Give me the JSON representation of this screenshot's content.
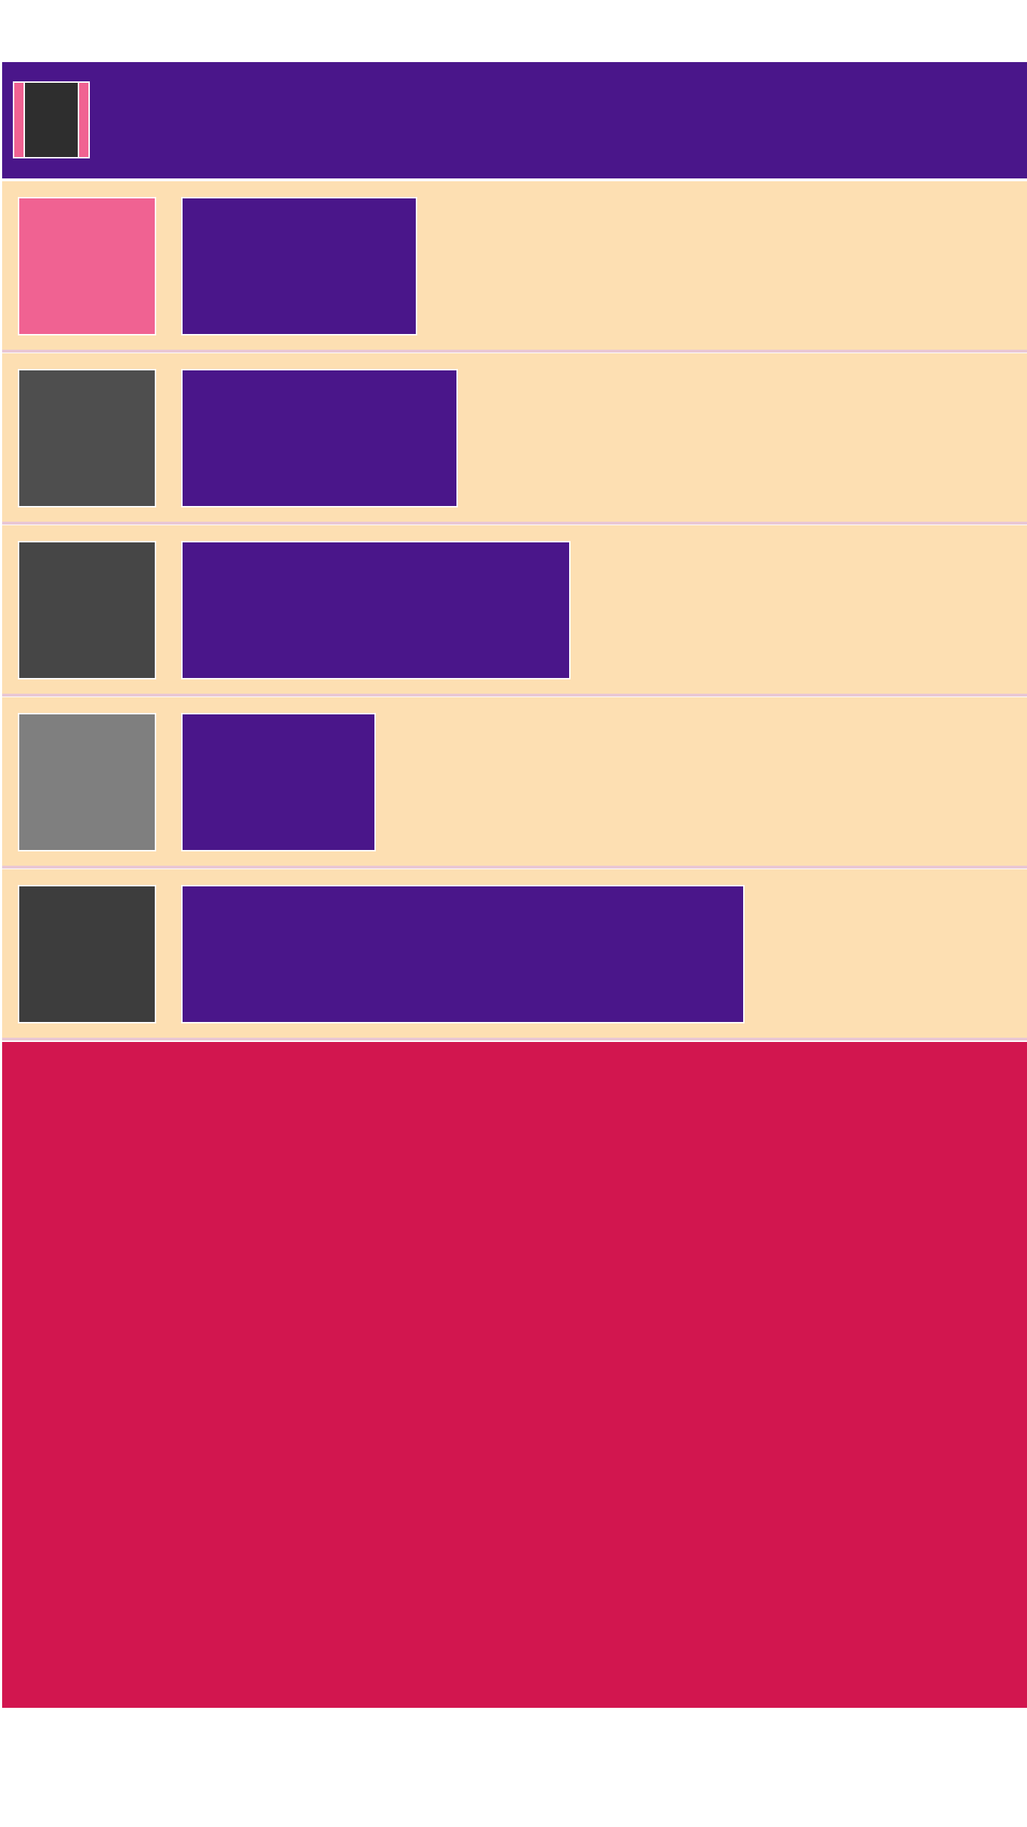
{
  "colors": {
    "toolbar_bg": "#4a168a",
    "accent_pink": "#f06292",
    "toolbar_icon_inner": "#2e2e2e",
    "row_bg": "#fddfb2",
    "title_bg": "#4a168a",
    "content_bg": "#d2164f"
  },
  "toolbar": {
    "icon": "app-logo-icon"
  },
  "list": {
    "items": [
      {
        "title": "",
        "thumb_color": "#f06292",
        "title_fraction": 0.23
      },
      {
        "title": "",
        "thumb_color": "#4e4e4e",
        "title_fraction": 0.27
      },
      {
        "title": "",
        "thumb_color": "#464646",
        "title_fraction": 0.38
      },
      {
        "title": "",
        "thumb_color": "#7f7f7f",
        "title_fraction": 0.19
      },
      {
        "title": "",
        "thumb_color": "#3d3d3d",
        "title_fraction": 0.55
      }
    ]
  }
}
